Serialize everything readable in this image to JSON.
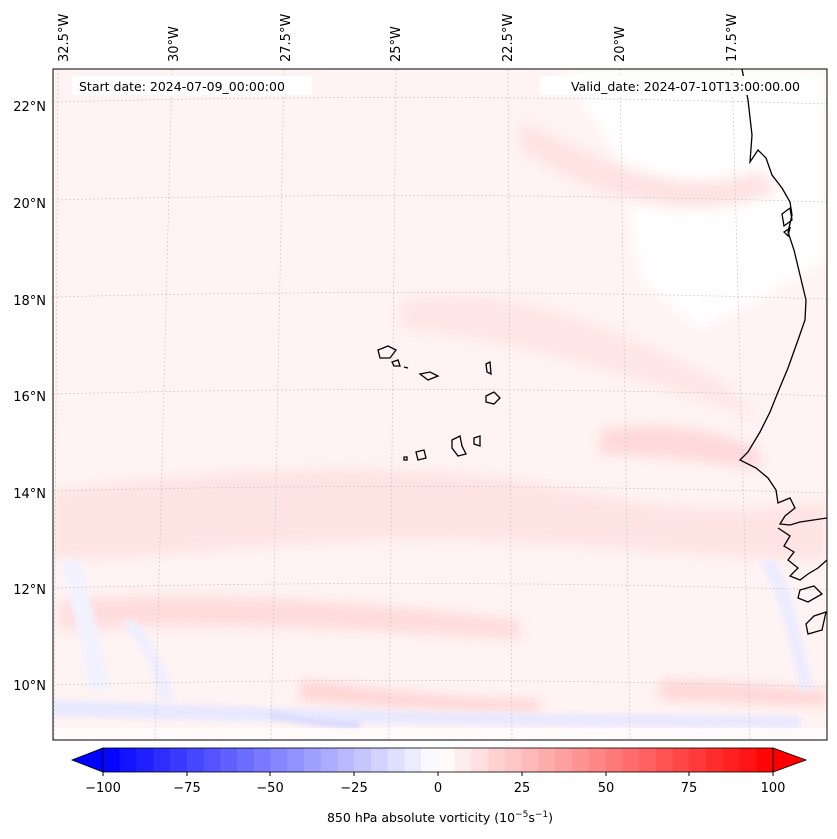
{
  "map": {
    "start_date": "Start date: 2024-07-09_00:00:00",
    "valid_date": "Valid_date: 2024-07-10T13:00:00.00",
    "lon_labels": [
      "32.5°W",
      "30°W",
      "27.5°W",
      "25°W",
      "22.5°W",
      "20°W",
      "17.5°W"
    ],
    "lat_labels": [
      "22°N",
      "20°N",
      "18°N",
      "16°N",
      "14°N",
      "12°N",
      "10°N"
    ],
    "gridlines": true,
    "coastline_color": "#000000"
  },
  "colorbar": {
    "ticks": [
      "−100",
      "−75",
      "−50",
      "−25",
      "0",
      "25",
      "50",
      "75",
      "100"
    ],
    "vmin": -100,
    "vmax": 100,
    "step": 5,
    "extend": "both",
    "cmap": "bwr",
    "label_main": "850 hPa absolute vorticity (10",
    "label_exp1": "−5",
    "label_mid": "s",
    "label_exp2": "−1",
    "label_end": ")"
  }
}
